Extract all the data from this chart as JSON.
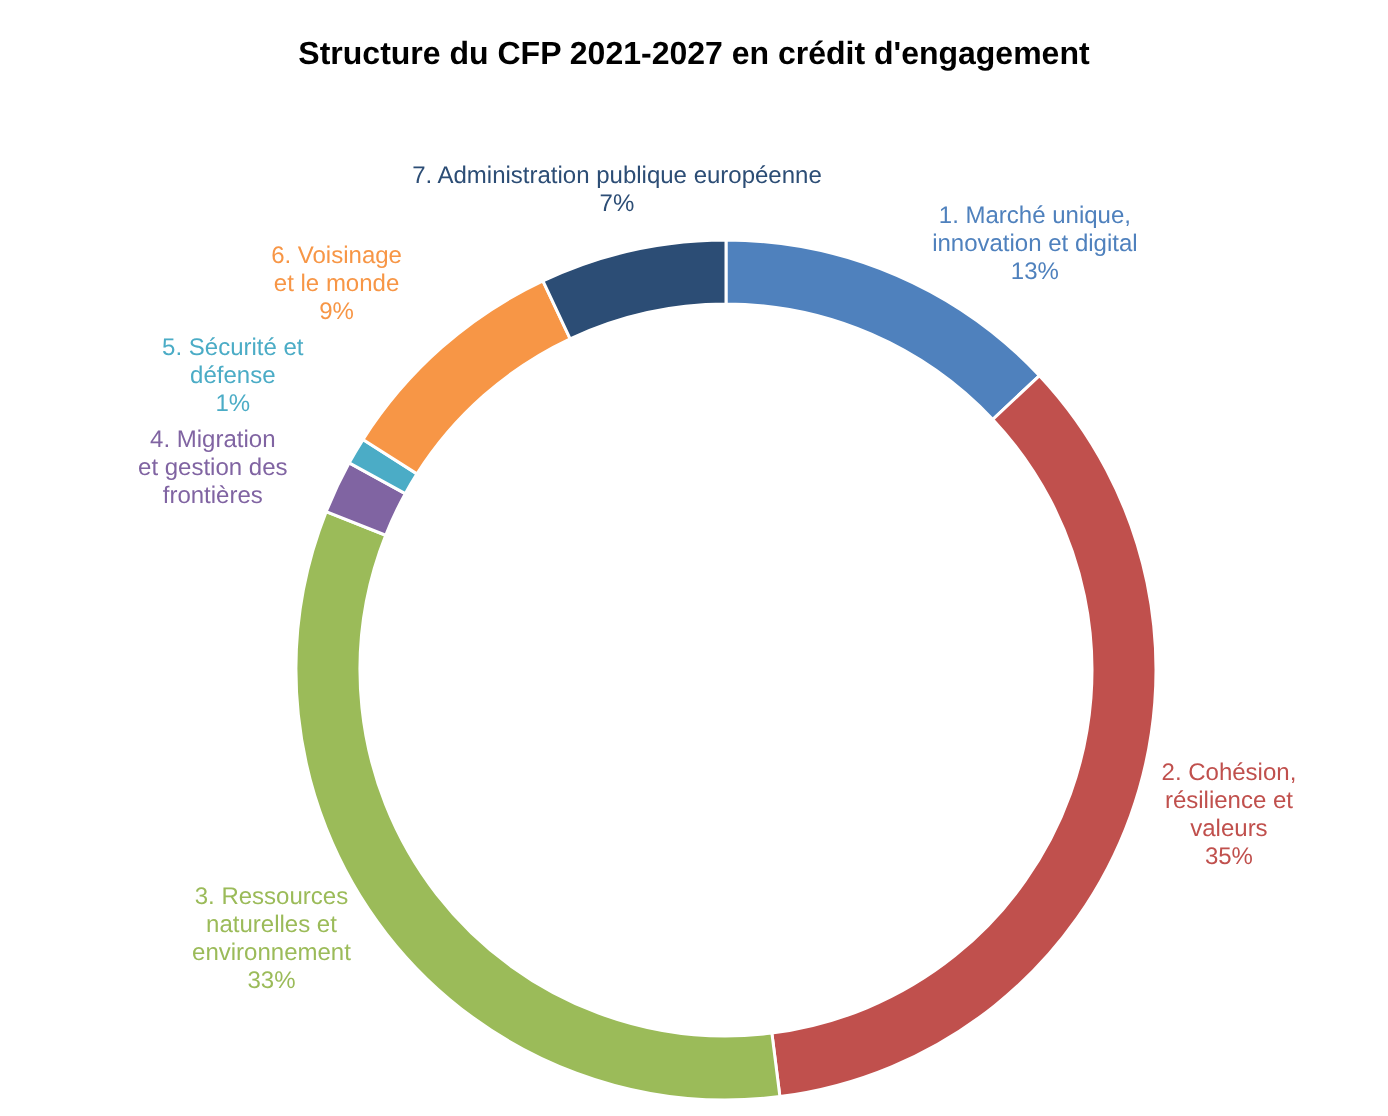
{
  "chart_data": {
    "type": "donut",
    "title": "Structure du CFP 2021-2027 en crédit d'engagement",
    "categories": [
      "1. Marché unique, innovation et digital",
      "2. Cohésion, résilience et valeurs",
      "3. Ressources naturelles et environnement",
      "4. Migration et gestion des frontières",
      "5. Sécurité et défense",
      "6. Voisinage et le monde",
      "7. Administration publique européenne"
    ],
    "values": [
      13,
      35,
      33,
      2,
      1,
      9,
      7
    ],
    "value_labels": [
      "13%",
      "35%",
      "33%",
      null,
      "1%",
      "9%",
      "7%"
    ],
    "colors": [
      "#4f81bd",
      "#c0504d",
      "#9bbb59",
      "#8064a2",
      "#4bacc6",
      "#f79646",
      "#2c4d75"
    ],
    "legend": false
  }
}
